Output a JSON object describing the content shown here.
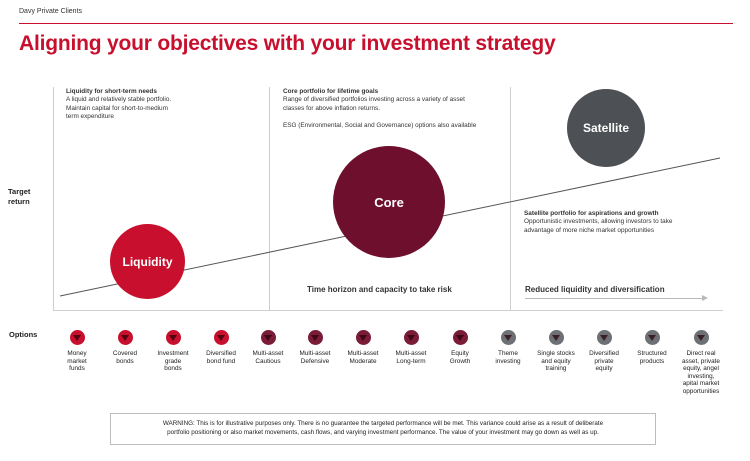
{
  "header": {
    "brand": "Davy Private Clients",
    "title": "Aligning your objectives with your investment strategy"
  },
  "axis": {
    "y_label_lines": [
      "Target",
      "return"
    ]
  },
  "sections": {
    "liquidity": {
      "heading": "Liquidity for short-term needs",
      "lines": [
        "A liquid and relatively stable portfolio.",
        "Maintain capital for short-to-medium",
        "term expenditure"
      ]
    },
    "core": {
      "heading": "Core portfolio for lifetime goals",
      "lines": [
        "Range of diversified portfolios investing across a variety of asset",
        "classes for above inflation returns."
      ],
      "esg": "ESG (Environmental, Social and Governance) options also available"
    },
    "satellite": {
      "heading": "Satellite portfolio for aspirations and growth",
      "lines": [
        "Opportunistic investments, allowing investors to take",
        "advantage of more niche market opportunities"
      ]
    }
  },
  "circles": {
    "liquidity": {
      "label": "Liquidity",
      "color": "#c8102e"
    },
    "core": {
      "label": "Core",
      "color": "#6e0f2e"
    },
    "satellite": {
      "label": "Satellite",
      "color": "#4d5054"
    }
  },
  "captions": {
    "time_horizon": "Time horizon and capacity to take risk",
    "reduced": "Reduced liquidity and diversification"
  },
  "options": {
    "label": "Options",
    "items": [
      {
        "lines": [
          "Money",
          "market",
          "funds"
        ],
        "color": "#c8102e"
      },
      {
        "lines": [
          "Covered",
          "bonds"
        ],
        "color": "#c8102e"
      },
      {
        "lines": [
          "Investment",
          "grade",
          "bonds"
        ],
        "color": "#c8102e"
      },
      {
        "lines": [
          "Diversified",
          "bond fund"
        ],
        "color": "#c8102e"
      },
      {
        "lines": [
          "Multi-asset",
          "Cautious"
        ],
        "color": "#7a1c38"
      },
      {
        "lines": [
          "Multi-asset",
          "Defensive"
        ],
        "color": "#7a1c38"
      },
      {
        "lines": [
          "Multi-asset",
          "Moderate"
        ],
        "color": "#7a1c38"
      },
      {
        "lines": [
          "Multi-asset",
          "Long-term"
        ],
        "color": "#7a1c38"
      },
      {
        "lines": [
          "Equity",
          "Growth"
        ],
        "color": "#7a1c38"
      },
      {
        "lines": [
          "Theme",
          "investing"
        ],
        "color": "#6d7075"
      },
      {
        "lines": [
          "Single stocks",
          "and equity",
          "training"
        ],
        "color": "#6d7075"
      },
      {
        "lines": [
          "Diversified",
          "private",
          "equity"
        ],
        "color": "#6d7075"
      },
      {
        "lines": [
          "Structured",
          "products"
        ],
        "color": "#6d7075"
      },
      {
        "lines": [
          "Direct real",
          "asset, private",
          "equity, angel",
          "investing,",
          "apital market",
          "opportunities"
        ],
        "color": "#6d7075"
      }
    ]
  },
  "warning": {
    "lines": [
      "WARNING: This is for illustrative purposes only. There is no guarantee the targeted performance will be met. This variance could arise as a result of deliberate",
      "portfolio positioning or also market movements, cash flows, and varying investment performance. The value of your investment may go down as well as up."
    ]
  }
}
